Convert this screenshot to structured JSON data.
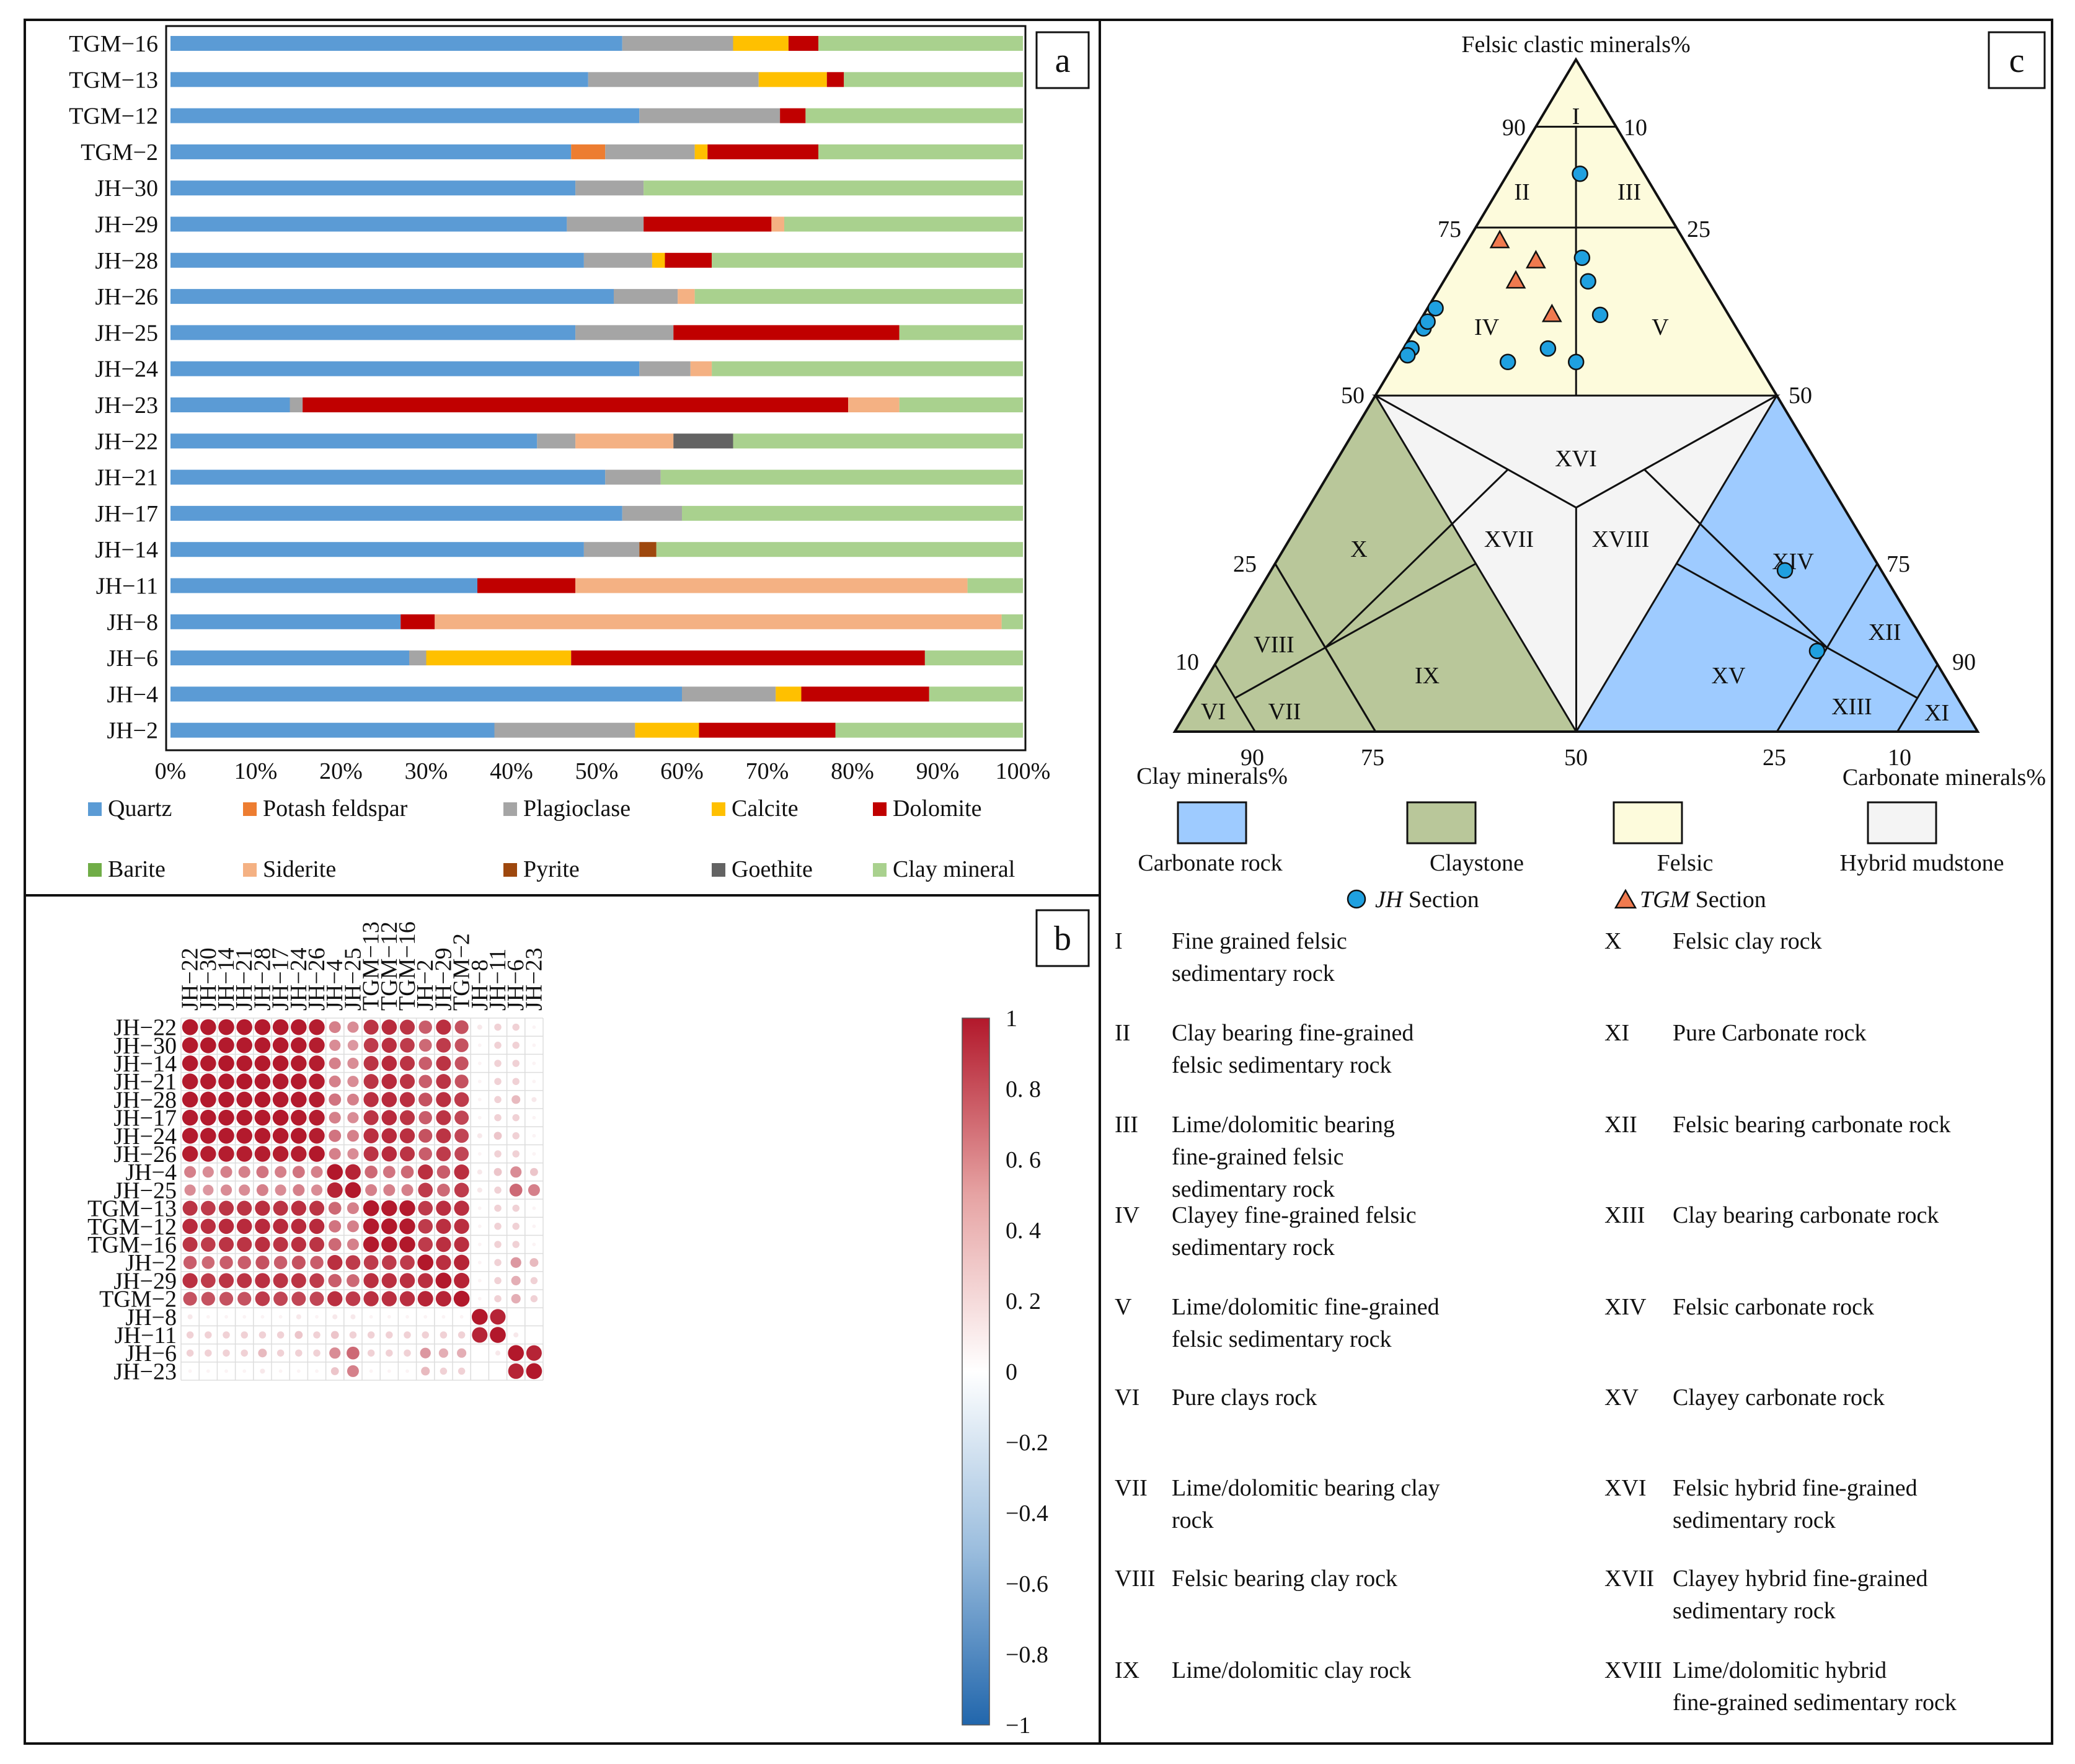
{
  "panel_letters": {
    "a": "a",
    "b": "b",
    "c": "c"
  },
  "colors": {
    "quartz": "#5b9bd5",
    "potash_feldspar": "#ed7d31",
    "plagioclase": "#a5a5a5",
    "calcite": "#ffc000",
    "dolomite": "#c00000",
    "barite": "#70ad47",
    "siderite": "#f4b183",
    "pyrite": "#9e480e",
    "goethite": "#636363",
    "clay_mineral": "#a9d18e",
    "carbonate_rock": "#9ecbff",
    "claystone": "#b9c79a",
    "felsic": "#fdfbdc",
    "hybrid": "#f4f4f4",
    "jh_marker": "#1fa0e0",
    "tgm_marker": "#f07a4f",
    "corr_pos": "#b2182b",
    "corr_neg": "#2166ac"
  },
  "chart_data": [
    {
      "type": "bar",
      "stacked": true,
      "orientation": "horizontal",
      "panel": "a",
      "categories": [
        "TGM−16",
        "TGM−13",
        "TGM−12",
        "TGM−2",
        "JH−30",
        "JH−29",
        "JH−28",
        "JH−26",
        "JH−25",
        "JH−24",
        "JH−23",
        "JH−22",
        "JH−21",
        "JH−17",
        "JH−14",
        "JH−11",
        "JH−8",
        "JH−6",
        "JH−4",
        "JH−2"
      ],
      "xlim": [
        0,
        100
      ],
      "xticks": [
        "0%",
        "10%",
        "20%",
        "30%",
        "40%",
        "50%",
        "60%",
        "70%",
        "80%",
        "90%",
        "100%"
      ],
      "legend_position": "bottom",
      "series": [
        {
          "name": "Quartz",
          "color_key": "quartz",
          "values": [
            53,
            49,
            55,
            47,
            47.5,
            46.5,
            48.5,
            52,
            47.5,
            55,
            14,
            43,
            51,
            53,
            48.5,
            36,
            27,
            28,
            60,
            38
          ]
        },
        {
          "name": "Potash feldspar",
          "color_key": "potash_feldspar",
          "values": [
            0,
            0,
            0,
            4,
            0,
            0,
            0,
            0,
            0,
            0,
            0,
            0,
            0,
            0,
            0,
            0,
            0,
            0,
            0,
            0
          ]
        },
        {
          "name": "Plagioclase",
          "color_key": "plagioclase",
          "values": [
            13,
            20,
            16.5,
            10.5,
            8,
            9,
            8,
            7.5,
            11.5,
            6,
            1.5,
            4.5,
            6.5,
            7,
            6.5,
            0,
            0,
            2,
            11,
            16.5
          ]
        },
        {
          "name": "Calcite",
          "color_key": "calcite",
          "values": [
            6.5,
            8,
            0,
            1.5,
            0,
            0,
            1.5,
            0,
            0,
            0,
            0,
            0,
            0,
            0,
            0,
            0,
            0,
            17,
            3,
            7.5
          ]
        },
        {
          "name": "Dolomite",
          "color_key": "dolomite",
          "values": [
            3.5,
            2,
            3,
            13,
            0,
            15,
            5.5,
            0,
            26.5,
            0,
            64,
            0,
            0,
            0,
            0,
            11.5,
            4,
            41.5,
            15,
            16
          ]
        },
        {
          "name": "Barite",
          "color_key": "barite",
          "values": [
            0,
            0,
            0,
            0,
            0,
            0,
            0,
            0,
            0,
            0,
            0,
            0,
            0,
            0,
            0,
            0,
            0,
            0,
            0,
            0
          ]
        },
        {
          "name": "Siderite",
          "color_key": "siderite",
          "values": [
            0,
            0,
            0,
            0,
            0,
            1.5,
            0,
            2,
            0,
            2.5,
            6,
            11.5,
            0,
            0,
            0,
            46,
            66.5,
            0,
            0,
            0
          ]
        },
        {
          "name": "Pyrite",
          "color_key": "pyrite",
          "values": [
            0,
            0,
            0,
            0,
            0,
            0,
            0,
            0,
            0,
            0,
            0,
            0,
            0,
            0,
            2,
            0,
            0,
            0,
            0,
            0
          ]
        },
        {
          "name": "Goethite",
          "color_key": "goethite",
          "values": [
            0,
            0,
            0,
            0,
            0,
            0,
            0,
            0,
            0,
            0,
            0,
            7,
            0,
            0,
            0,
            0,
            0,
            0,
            0,
            0
          ]
        },
        {
          "name": "Clay mineral",
          "color_key": "clay_mineral",
          "values": [
            24,
            21,
            25.5,
            24,
            44.5,
            28,
            36.5,
            38.5,
            14.5,
            36.5,
            14.5,
            34,
            42.5,
            40,
            43,
            6.5,
            2.5,
            11.5,
            11,
            22
          ]
        }
      ]
    },
    {
      "type": "heatmap",
      "panel": "b",
      "style": "circle",
      "labels": [
        "JH−22",
        "JH−30",
        "JH−14",
        "JH−21",
        "JH−28",
        "JH−17",
        "JH−24",
        "JH−26",
        "JH−4",
        "JH−25",
        "TGM−13",
        "TGM−12",
        "TGM−16",
        "JH−2",
        "JH−29",
        "TGM−2",
        "JH−8",
        "JH−11",
        "JH−6",
        "JH−23"
      ],
      "colorbar": {
        "range": [
          -1,
          1
        ],
        "ticks": [
          "1",
          "0. 8",
          "0. 6",
          "0. 4",
          "0. 2",
          "0",
          "−0.2",
          "−0.4",
          "−0.6",
          "−0.8",
          "−1"
        ]
      },
      "matrix": [
        [
          1,
          0.99,
          0.99,
          0.99,
          0.99,
          0.99,
          0.99,
          0.98,
          0.55,
          0.5,
          0.88,
          0.92,
          0.88,
          0.7,
          0.9,
          0.75,
          0.1,
          0.2,
          0.2,
          0.05
        ],
        [
          0.99,
          1,
          0.99,
          0.99,
          0.99,
          0.99,
          0.99,
          0.98,
          0.5,
          0.45,
          0.85,
          0.9,
          0.85,
          0.65,
          0.85,
          0.75,
          0.05,
          0.2,
          0.2,
          0.05
        ],
        [
          0.99,
          0.99,
          1,
          0.99,
          0.99,
          0.99,
          0.99,
          0.98,
          0.55,
          0.5,
          0.88,
          0.92,
          0.88,
          0.7,
          0.88,
          0.75,
          0.05,
          0.2,
          0.2,
          0.05
        ],
        [
          0.99,
          0.99,
          0.99,
          1,
          0.99,
          0.99,
          0.99,
          0.98,
          0.55,
          0.5,
          0.88,
          0.92,
          0.88,
          0.7,
          0.88,
          0.75,
          0.05,
          0.2,
          0.2,
          0.05
        ],
        [
          0.99,
          0.99,
          0.99,
          0.99,
          1,
          0.99,
          0.99,
          0.98,
          0.6,
          0.55,
          0.9,
          0.92,
          0.9,
          0.75,
          0.9,
          0.85,
          0.05,
          0.2,
          0.3,
          0.1
        ],
        [
          0.99,
          0.99,
          0.99,
          0.99,
          0.99,
          1,
          0.99,
          0.98,
          0.55,
          0.5,
          0.88,
          0.92,
          0.88,
          0.7,
          0.88,
          0.8,
          0.05,
          0.2,
          0.2,
          0.05
        ],
        [
          0.99,
          0.99,
          0.99,
          0.99,
          0.99,
          0.99,
          1,
          0.98,
          0.6,
          0.55,
          0.9,
          0.92,
          0.9,
          0.75,
          0.88,
          0.8,
          0.1,
          0.25,
          0.2,
          0.05
        ],
        [
          0.98,
          0.98,
          0.98,
          0.98,
          0.98,
          0.98,
          0.98,
          1,
          0.55,
          0.5,
          0.88,
          0.92,
          0.88,
          0.7,
          0.85,
          0.8,
          0.05,
          0.2,
          0.2,
          0.05
        ],
        [
          0.55,
          0.5,
          0.55,
          0.55,
          0.6,
          0.55,
          0.6,
          0.55,
          1,
          0.95,
          0.65,
          0.6,
          0.65,
          0.9,
          0.7,
          0.9,
          0.1,
          0.25,
          0.5,
          0.25
        ],
        [
          0.5,
          0.45,
          0.5,
          0.5,
          0.55,
          0.5,
          0.55,
          0.5,
          0.95,
          1,
          0.55,
          0.55,
          0.55,
          0.85,
          0.65,
          0.85,
          0.1,
          0.2,
          0.65,
          0.55
        ],
        [
          0.88,
          0.85,
          0.88,
          0.88,
          0.9,
          0.88,
          0.9,
          0.88,
          0.65,
          0.55,
          1,
          0.99,
          0.99,
          0.85,
          0.9,
          0.9,
          0.05,
          0.2,
          0.2,
          0.05
        ],
        [
          0.92,
          0.9,
          0.92,
          0.92,
          0.92,
          0.92,
          0.92,
          0.92,
          0.6,
          0.55,
          0.99,
          1,
          0.99,
          0.85,
          0.9,
          0.9,
          0.05,
          0.2,
          0.2,
          0.05
        ],
        [
          0.88,
          0.85,
          0.88,
          0.88,
          0.9,
          0.88,
          0.9,
          0.88,
          0.65,
          0.55,
          0.99,
          0.99,
          1,
          0.85,
          0.9,
          0.9,
          0.05,
          0.2,
          0.2,
          0.05
        ],
        [
          0.7,
          0.65,
          0.7,
          0.7,
          0.75,
          0.7,
          0.75,
          0.7,
          0.9,
          0.85,
          0.85,
          0.85,
          0.85,
          1,
          0.9,
          0.95,
          0.05,
          0.2,
          0.45,
          0.3
        ],
        [
          0.9,
          0.85,
          0.88,
          0.88,
          0.9,
          0.88,
          0.88,
          0.85,
          0.7,
          0.65,
          0.9,
          0.9,
          0.9,
          0.9,
          1,
          0.95,
          0.05,
          0.2,
          0.35,
          0.2
        ],
        [
          0.75,
          0.75,
          0.75,
          0.75,
          0.85,
          0.8,
          0.8,
          0.8,
          0.9,
          0.85,
          0.9,
          0.9,
          0.9,
          0.95,
          0.95,
          1,
          0.05,
          0.2,
          0.35,
          0.2
        ],
        [
          0.1,
          0.05,
          0.05,
          0.05,
          0.05,
          0.05,
          0.1,
          0.05,
          0.1,
          0.1,
          0.05,
          0.05,
          0.05,
          0.05,
          0.05,
          0.05,
          1,
          0.95,
          0,
          0
        ],
        [
          0.2,
          0.2,
          0.2,
          0.2,
          0.2,
          0.2,
          0.25,
          0.2,
          0.25,
          0.2,
          0.2,
          0.2,
          0.2,
          0.2,
          0.2,
          0.2,
          0.95,
          1,
          0.1,
          0
        ],
        [
          0.2,
          0.2,
          0.2,
          0.2,
          0.3,
          0.2,
          0.2,
          0.2,
          0.5,
          0.65,
          0.2,
          0.2,
          0.2,
          0.45,
          0.35,
          0.35,
          0,
          0.1,
          1,
          0.95
        ],
        [
          0.05,
          0.05,
          0.05,
          0.05,
          0.1,
          0.05,
          0.05,
          0.05,
          0.25,
          0.55,
          0.05,
          0.05,
          0.05,
          0.3,
          0.2,
          0.2,
          0,
          0,
          0.95,
          1
        ]
      ]
    },
    {
      "type": "scatter",
      "panel": "c",
      "subtype": "ternary",
      "top_label": "Felsic clastic minerals%",
      "left_label": "Clay minerals%",
      "right_label": "Carbonate minerals%",
      "ternary_ticks": {
        "right_edge_left": [
          "90",
          "75",
          "50",
          "25",
          "10"
        ],
        "right_edge_right": [
          "10",
          "25",
          "50",
          "75",
          "90"
        ],
        "bottom": [
          "90",
          "75",
          "50",
          "25",
          "10"
        ]
      },
      "region_labels": [
        "I",
        "II",
        "III",
        "IV",
        "V",
        "VI",
        "VII",
        "VIII",
        "IX",
        "X",
        "XI",
        "XII",
        "XIII",
        "XIV",
        "XV",
        "XVI",
        "XVII",
        "XVIII"
      ],
      "series": [
        {
          "name": "JH Section",
          "marker": "circle",
          "color_key": "jh_marker",
          "points": [
            {
              "felsic": 83,
              "clay": 8,
              "carbonate": 9
            },
            {
              "felsic": 70.5,
              "clay": 14,
              "carbonate": 15.5
            },
            {
              "felsic": 67,
              "clay": 15,
              "carbonate": 18
            },
            {
              "felsic": 62,
              "clay": 16,
              "carbonate": 22
            },
            {
              "felsic": 57,
              "clay": 25,
              "carbonate": 18
            },
            {
              "felsic": 55,
              "clay": 22.5,
              "carbonate": 22.5
            },
            {
              "felsic": 55,
              "clay": 31,
              "carbonate": 14
            },
            {
              "felsic": 57,
              "clay": 42,
              "carbonate": 1
            },
            {
              "felsic": 60,
              "clay": 39,
              "carbonate": 1
            },
            {
              "felsic": 63,
              "clay": 36,
              "carbonate": 1
            },
            {
              "felsic": 61,
              "clay": 38,
              "carbonate": 1
            },
            {
              "felsic": 56,
              "clay": 43,
              "carbonate": 1
            },
            {
              "felsic": 24,
              "clay": 12,
              "carbonate": 64
            },
            {
              "felsic": 12,
              "clay": 14,
              "carbonate": 74
            }
          ]
        },
        {
          "name": "TGM Section",
          "marker": "triangle",
          "color_key": "tgm_marker",
          "points": [
            {
              "felsic": 73,
              "clay": 23,
              "carbonate": 4
            },
            {
              "felsic": 70,
              "clay": 20,
              "carbonate": 10
            },
            {
              "felsic": 67,
              "clay": 24,
              "carbonate": 9
            },
            {
              "felsic": 62,
              "clay": 22,
              "carbonate": 16
            }
          ]
        }
      ],
      "field_legend": [
        "Carbonate rock",
        "Claystone",
        "Felsic",
        "Hybrid mudstone"
      ],
      "classification": [
        {
          "code": "I",
          "name": "Fine grained felsic sedimentary rock"
        },
        {
          "code": "II",
          "name": "Clay bearing fine-grained felsic sedimentary rock"
        },
        {
          "code": "III",
          "name": "Lime/dolomitic bearing fine-grained felsic sedimentary rock"
        },
        {
          "code": "IV",
          "name": "Clayey fine-grained felsic sedimentary rock"
        },
        {
          "code": "V",
          "name": "Lime/dolomitic fine-grained felsic sedimentary rock"
        },
        {
          "code": "VI",
          "name": "Pure clays rock"
        },
        {
          "code": "VII",
          "name": "Lime/dolomitic bearing clay rock"
        },
        {
          "code": "VIII",
          "name": "Felsic bearing clay rock"
        },
        {
          "code": "IX",
          "name": "Lime/dolomitic clay rock"
        },
        {
          "code": "X",
          "name": "Felsic clay rock"
        },
        {
          "code": "XI",
          "name": "Pure Carbonate rock"
        },
        {
          "code": "XII",
          "name": "Felsic bearing carbonate rock"
        },
        {
          "code": "XIII",
          "name": "Clay bearing carbonate rock"
        },
        {
          "code": "XIV",
          "name": "Felsic carbonate rock"
        },
        {
          "code": "XV",
          "name": "Clayey carbonate rock"
        },
        {
          "code": "XVI",
          "name": "Felsic hybrid fine-grained sedimentary rock"
        },
        {
          "code": "XVII",
          "name": "Clayey hybrid fine-grained sedimentary rock"
        },
        {
          "code": "XVIII",
          "name": "Lime/dolomitic hybrid fine-grained sedimentary rock"
        }
      ]
    }
  ]
}
